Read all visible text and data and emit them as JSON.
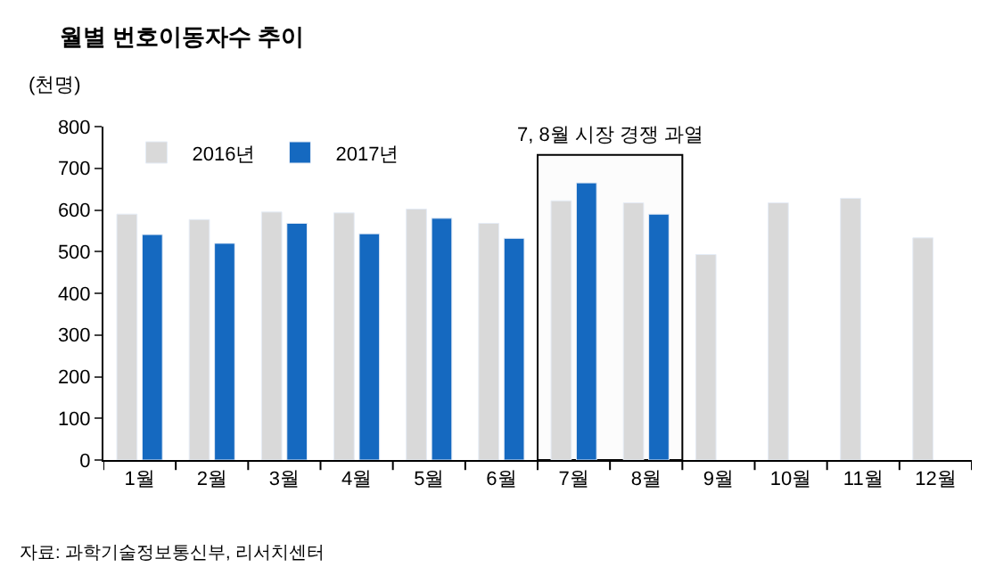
{
  "chart_data": {
    "type": "bar",
    "title": "월별 번호이동자수 추이",
    "ylabel": "(천명)",
    "categories": [
      "1월",
      "2월",
      "3월",
      "4월",
      "5월",
      "6월",
      "7월",
      "8월",
      "9월",
      "10월",
      "11월",
      "12월"
    ],
    "series": [
      {
        "name": "2016년",
        "color": "#d9d9d9",
        "values": [
          590,
          577,
          595,
          593,
          602,
          568,
          622,
          617,
          493,
          617,
          628,
          533
        ]
      },
      {
        "name": "2017년",
        "color": "#1569c0",
        "values": [
          541,
          520,
          568,
          543,
          580,
          532,
          665,
          590,
          null,
          null,
          null,
          null
        ]
      }
    ],
    "ylim": [
      0,
      800
    ],
    "yticks": [
      0,
      100,
      200,
      300,
      400,
      500,
      600,
      700,
      800
    ],
    "legend": "top left",
    "bands": [
      {
        "axis": "x",
        "from": "7월",
        "to": "8월",
        "label": "7, 8월 시장 경쟁 과열"
      }
    ],
    "annotations": [
      "자료: 과학기술정보통신부, 리서치센터"
    ]
  }
}
